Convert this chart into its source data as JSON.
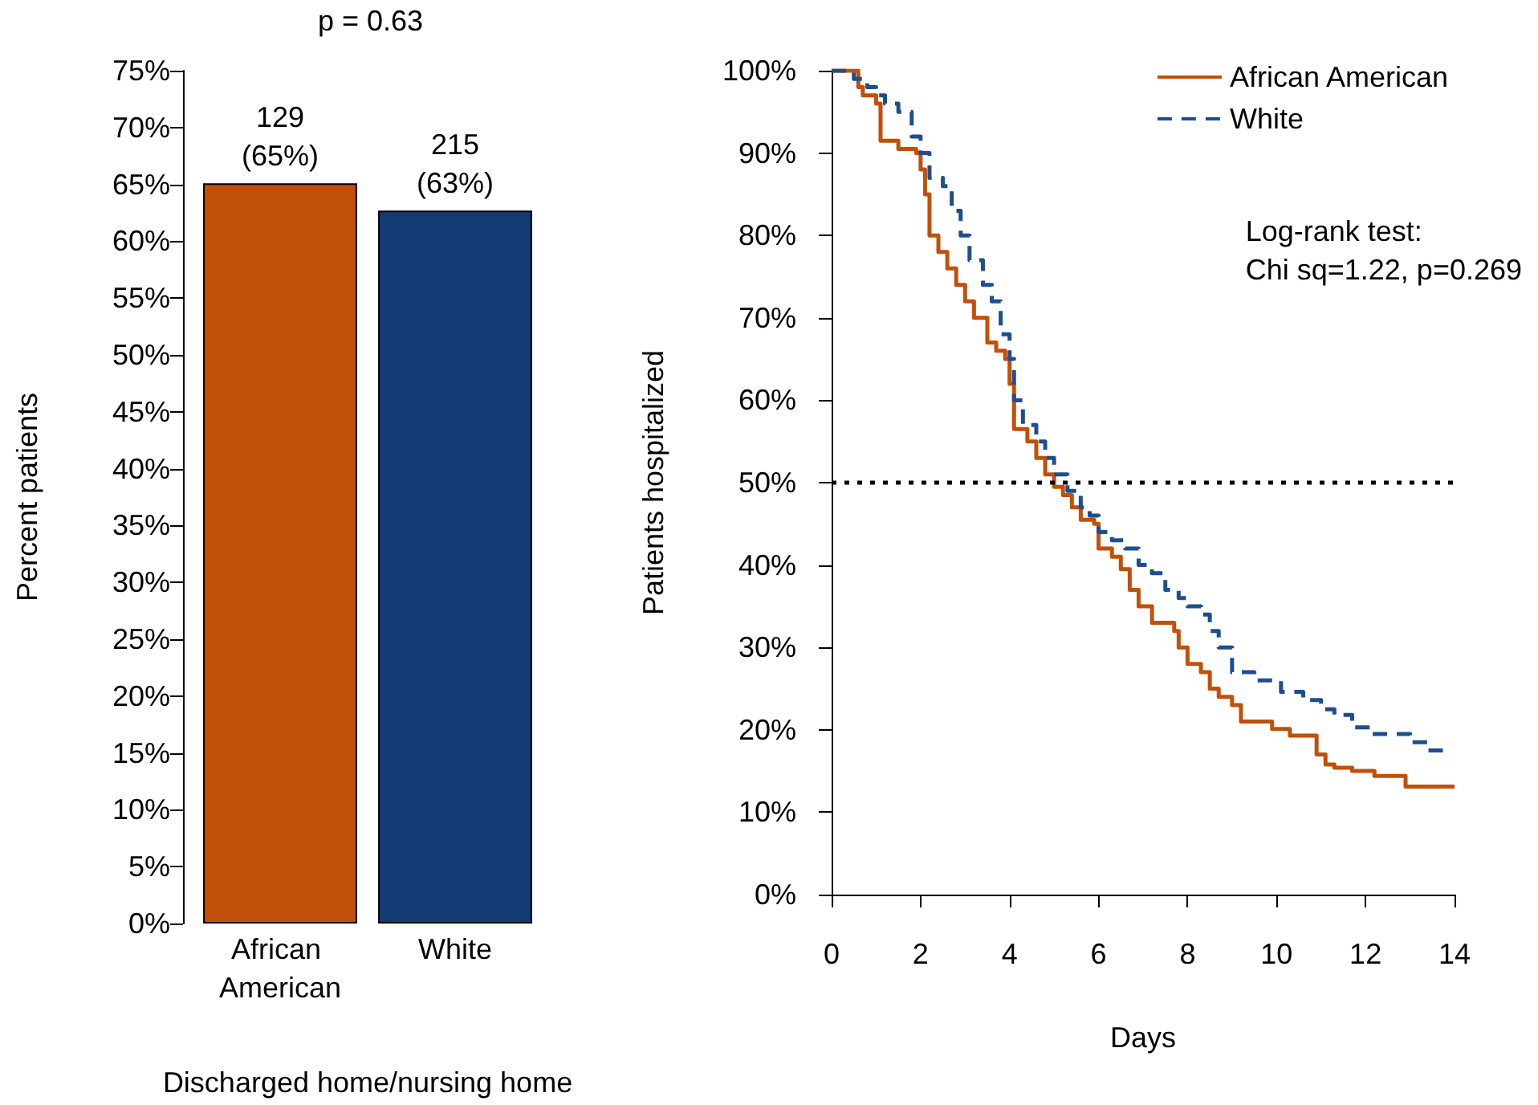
{
  "chart_data": [
    {
      "type": "bar",
      "xlabel": "Discharged home/nursing home",
      "ylabel": "Percent patients",
      "categories": [
        "African American",
        "White"
      ],
      "values": [
        65.1,
        62.7
      ],
      "colors": [
        "#c0500a",
        "#143a73"
      ],
      "value_labels": [
        "129\n(65%)",
        "215\n(63%)"
      ],
      "ylim": [
        0,
        75
      ],
      "yticks": [
        {
          "value": 0,
          "label": "0%"
        },
        {
          "value": 5,
          "label": "5%"
        },
        {
          "value": 10,
          "label": "10%"
        },
        {
          "value": 15,
          "label": "15%"
        },
        {
          "value": 20,
          "label": "20%"
        },
        {
          "value": 25,
          "label": "25%"
        },
        {
          "value": 30,
          "label": "30%"
        },
        {
          "value": 35,
          "label": "35%"
        },
        {
          "value": 40,
          "label": "40%"
        },
        {
          "value": 45,
          "label": "45%"
        },
        {
          "value": 50,
          "label": "50%"
        },
        {
          "value": 55,
          "label": "55%"
        },
        {
          "value": 60,
          "label": "60%"
        },
        {
          "value": 65,
          "label": "65%"
        },
        {
          "value": 70,
          "label": "70%"
        },
        {
          "value": 75,
          "label": "75%"
        }
      ],
      "annotations": [
        "p = 0.63"
      ],
      "grid": false
    },
    {
      "type": "step",
      "xlabel": "Days",
      "ylabel": "Patients hospitalized",
      "legend": "top right",
      "grid": false,
      "series": [
        {
          "name": "African American",
          "color": "#c0500a",
          "line_style": "solid",
          "x": [
            0,
            0.6,
            0.7,
            1.0,
            1.1,
            1.5,
            1.9,
            2.0,
            2.1,
            2.2,
            2.4,
            2.6,
            2.8,
            3.0,
            3.2,
            3.5,
            3.7,
            3.9,
            4.0,
            4.1,
            4.4,
            4.6,
            4.8,
            5.0,
            5.2,
            5.4,
            5.6,
            5.9,
            6.0,
            6.3,
            6.5,
            6.7,
            6.9,
            7.2,
            7.7,
            7.8,
            8.0,
            8.3,
            8.5,
            8.7,
            9.0,
            9.2,
            9.9,
            10.3,
            10.9,
            11.1,
            11.3,
            11.7,
            12.2,
            12.9,
            14.0
          ],
          "values": [
            100,
            98,
            97,
            96,
            91.5,
            90.5,
            90,
            88,
            85,
            80,
            78,
            76,
            74,
            72,
            70,
            67,
            66,
            65,
            62,
            56.5,
            55,
            53,
            51,
            49.5,
            48.5,
            47,
            45.5,
            45,
            42,
            41,
            39.5,
            37,
            35,
            33,
            32,
            30,
            28,
            27,
            25,
            24,
            23,
            21,
            20.1,
            19.3,
            17,
            15.8,
            15.4,
            15,
            14.4,
            13.1,
            13.1
          ]
        },
        {
          "name": "White",
          "color": "#1f4e8c",
          "line_style": "dashed",
          "x": [
            0,
            0.5,
            0.8,
            1.0,
            1.2,
            1.5,
            1.8,
            2.0,
            2.2,
            2.5,
            2.7,
            2.9,
            3.1,
            3.4,
            3.6,
            3.8,
            4.0,
            4.1,
            4.3,
            4.6,
            4.8,
            5.0,
            5.3,
            5.6,
            5.8,
            6.0,
            6.3,
            6.6,
            6.9,
            7.2,
            7.5,
            7.8,
            8.0,
            8.3,
            8.5,
            8.7,
            9.0,
            9.5,
            10.1,
            10.6,
            11.0,
            11.3,
            11.7,
            12.1,
            13.0,
            13.4,
            13.85
          ],
          "values": [
            100,
            99,
            98,
            97,
            96,
            95,
            92,
            90,
            87,
            86,
            83,
            80,
            77,
            74,
            72,
            68,
            65,
            60,
            57,
            55,
            53,
            51,
            49,
            47,
            46,
            44,
            43,
            42,
            40,
            39,
            37,
            36,
            35,
            34,
            32,
            30,
            27,
            26,
            24.6,
            23.6,
            22.5,
            21.8,
            20.3,
            19.5,
            18.5,
            17.5,
            17.5
          ]
        }
      ],
      "xlim": [
        0,
        14
      ],
      "xticks": [
        0,
        2,
        4,
        6,
        8,
        10,
        12,
        14
      ],
      "ylim": [
        0,
        100
      ],
      "yticks": [
        {
          "value": 0,
          "label": "0%"
        },
        {
          "value": 10,
          "label": "10%"
        },
        {
          "value": 20,
          "label": "20%"
        },
        {
          "value": 30,
          "label": "30%"
        },
        {
          "value": 40,
          "label": "40%"
        },
        {
          "value": 50,
          "label": "50%"
        },
        {
          "value": 60,
          "label": "60%"
        },
        {
          "value": 70,
          "label": "70%"
        },
        {
          "value": 80,
          "label": "80%"
        },
        {
          "value": 90,
          "label": "90%"
        },
        {
          "value": 100,
          "label": "100%"
        }
      ],
      "ref_lines": [
        {
          "axis": "y",
          "value": 50,
          "label": null,
          "color": "#000000",
          "line_style": "dotted"
        }
      ],
      "annotations": [
        "Log-rank test:\nChi sq=1.22, p=0.269"
      ]
    }
  ]
}
